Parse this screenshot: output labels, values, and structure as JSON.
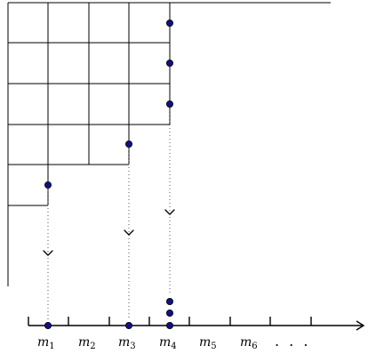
{
  "axis": {
    "labels": [
      {
        "base": "m",
        "sub": "1"
      },
      {
        "base": "m",
        "sub": "2"
      },
      {
        "base": "m",
        "sub": "3"
      },
      {
        "base": "m",
        "sub": "4"
      },
      {
        "base": "m",
        "sub": "5"
      },
      {
        "base": "m",
        "sub": "6"
      }
    ],
    "ellipsis": ". . ."
  },
  "colors": {
    "dot": "#10108a"
  }
}
